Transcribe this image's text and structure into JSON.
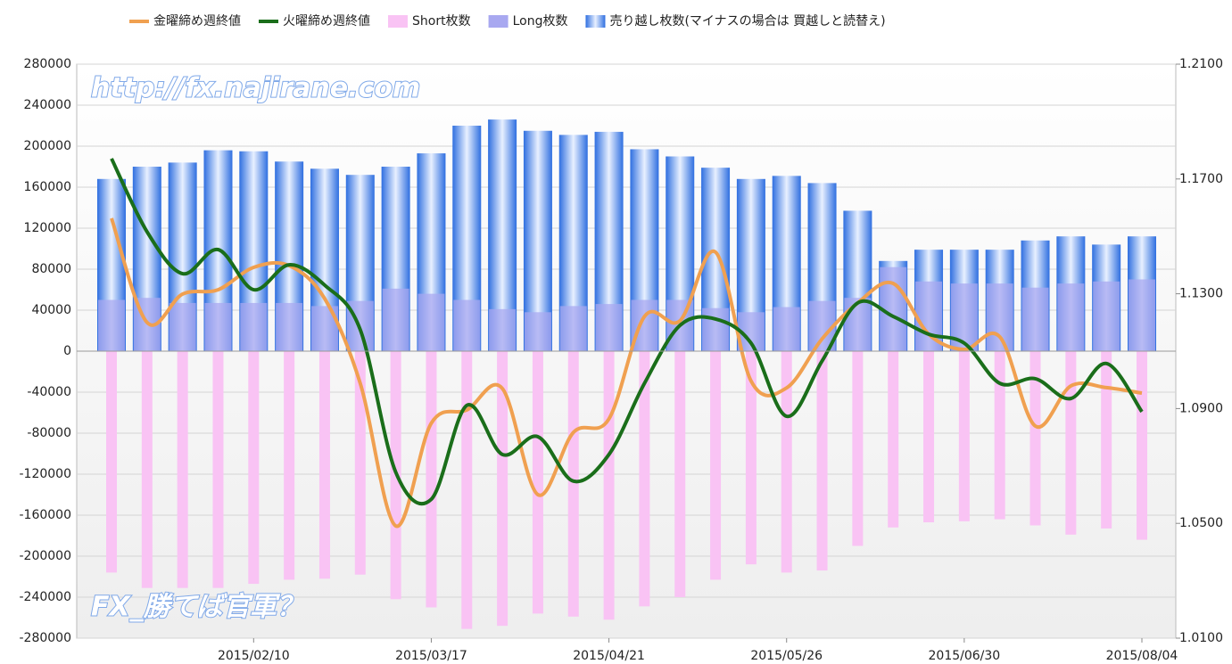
{
  "chart_data": {
    "type": "bar-line",
    "categories": [
      null,
      null,
      null,
      null,
      "2015/02/10",
      null,
      null,
      null,
      null,
      "2015/03/17",
      null,
      null,
      null,
      null,
      "2015/04/21",
      null,
      null,
      null,
      null,
      "2015/05/26",
      null,
      null,
      null,
      null,
      "2015/06/30",
      null,
      null,
      null,
      null,
      "2015/08/04"
    ],
    "series": [
      {
        "name": "金曜締め週終値",
        "kind": "line",
        "axis": "y2",
        "color": "#f0a050",
        "values": [
          1.1563,
          1.12,
          1.1299,
          1.1314,
          1.1392,
          1.1398,
          1.1283,
          1.0988,
          1.0491,
          1.0849,
          1.0895,
          1.097,
          1.06,
          1.0817,
          1.0864,
          1.1221,
          1.1206,
          1.1445,
          1.0996,
          1.0972,
          1.1143,
          1.1268,
          1.1336,
          1.1159,
          1.1106,
          1.115,
          1.0839,
          1.0979,
          1.0973,
          1.0954
        ]
      },
      {
        "name": "火曜締め週終値",
        "kind": "line",
        "axis": "y2",
        "color": "#1a6e1a",
        "values": [
          1.1771,
          1.1516,
          1.137,
          1.1454,
          1.1314,
          1.1401,
          1.133,
          1.1175,
          1.0678,
          1.0584,
          1.0911,
          1.074,
          1.0802,
          1.0647,
          1.074,
          1.0988,
          1.119,
          1.1212,
          1.1128,
          1.0873,
          1.1066,
          1.1268,
          1.1221,
          1.1159,
          1.1128,
          1.0988,
          1.1004,
          1.0935,
          1.1057,
          1.0889
        ]
      },
      {
        "name": "Short枚数",
        "kind": "bar-narrow",
        "color": "#f9c3f4",
        "values": [
          -216000,
          -231000,
          -231000,
          -231000,
          -227000,
          -223000,
          -222000,
          -218000,
          -242000,
          -250000,
          -271000,
          -268000,
          -256000,
          -259000,
          -262000,
          -249000,
          -240000,
          -223000,
          -208000,
          -216000,
          -214000,
          -190000,
          -172000,
          -167000,
          -166000,
          -164000,
          -170000,
          -179000,
          -173000,
          -184000
        ]
      },
      {
        "name": "Long枚数",
        "kind": "bar-overlay",
        "color": "#a8a8f0",
        "values": [
          50000,
          52000,
          47000,
          47000,
          47000,
          47000,
          44000,
          49000,
          61000,
          56000,
          50000,
          41000,
          38000,
          44000,
          46000,
          50000,
          50000,
          42000,
          38000,
          43000,
          49000,
          52000,
          82000,
          68000,
          66000,
          66000,
          62000,
          66000,
          68000,
          70000
        ]
      },
      {
        "name": "売り越し枚数(マイナスの場合は 買越しと読替え)",
        "kind": "bar-wide",
        "color": "#3a7fe8",
        "values": [
          168000,
          180000,
          184000,
          196000,
          195000,
          185000,
          178000,
          172000,
          180000,
          193000,
          220000,
          226000,
          215000,
          211000,
          214000,
          197000,
          190000,
          179000,
          168000,
          171000,
          164000,
          137000,
          88000,
          99000,
          99000,
          99000,
          108000,
          112000,
          104000,
          112000
        ]
      }
    ],
    "ylim": [
      -280000,
      280000
    ],
    "yticks": [
      -280000,
      -240000,
      -200000,
      -160000,
      -120000,
      -80000,
      -40000,
      0,
      40000,
      80000,
      120000,
      160000,
      200000,
      240000,
      280000
    ],
    "y2lim": [
      1.01,
      1.21
    ],
    "y2ticks": [
      {
        "value": 1.01,
        "label": "1.0100"
      },
      {
        "value": 1.05,
        "label": "1.0500"
      },
      {
        "value": 1.09,
        "label": "1.0900"
      },
      {
        "value": 1.13,
        "label": "1.1300"
      },
      {
        "value": 1.17,
        "label": "1.1700"
      },
      {
        "value": 1.21,
        "label": "1.2100"
      }
    ],
    "grid": true,
    "legend": "top",
    "watermarks": [
      "http://fx.najirane.com",
      "FX_勝てば官軍？"
    ]
  }
}
